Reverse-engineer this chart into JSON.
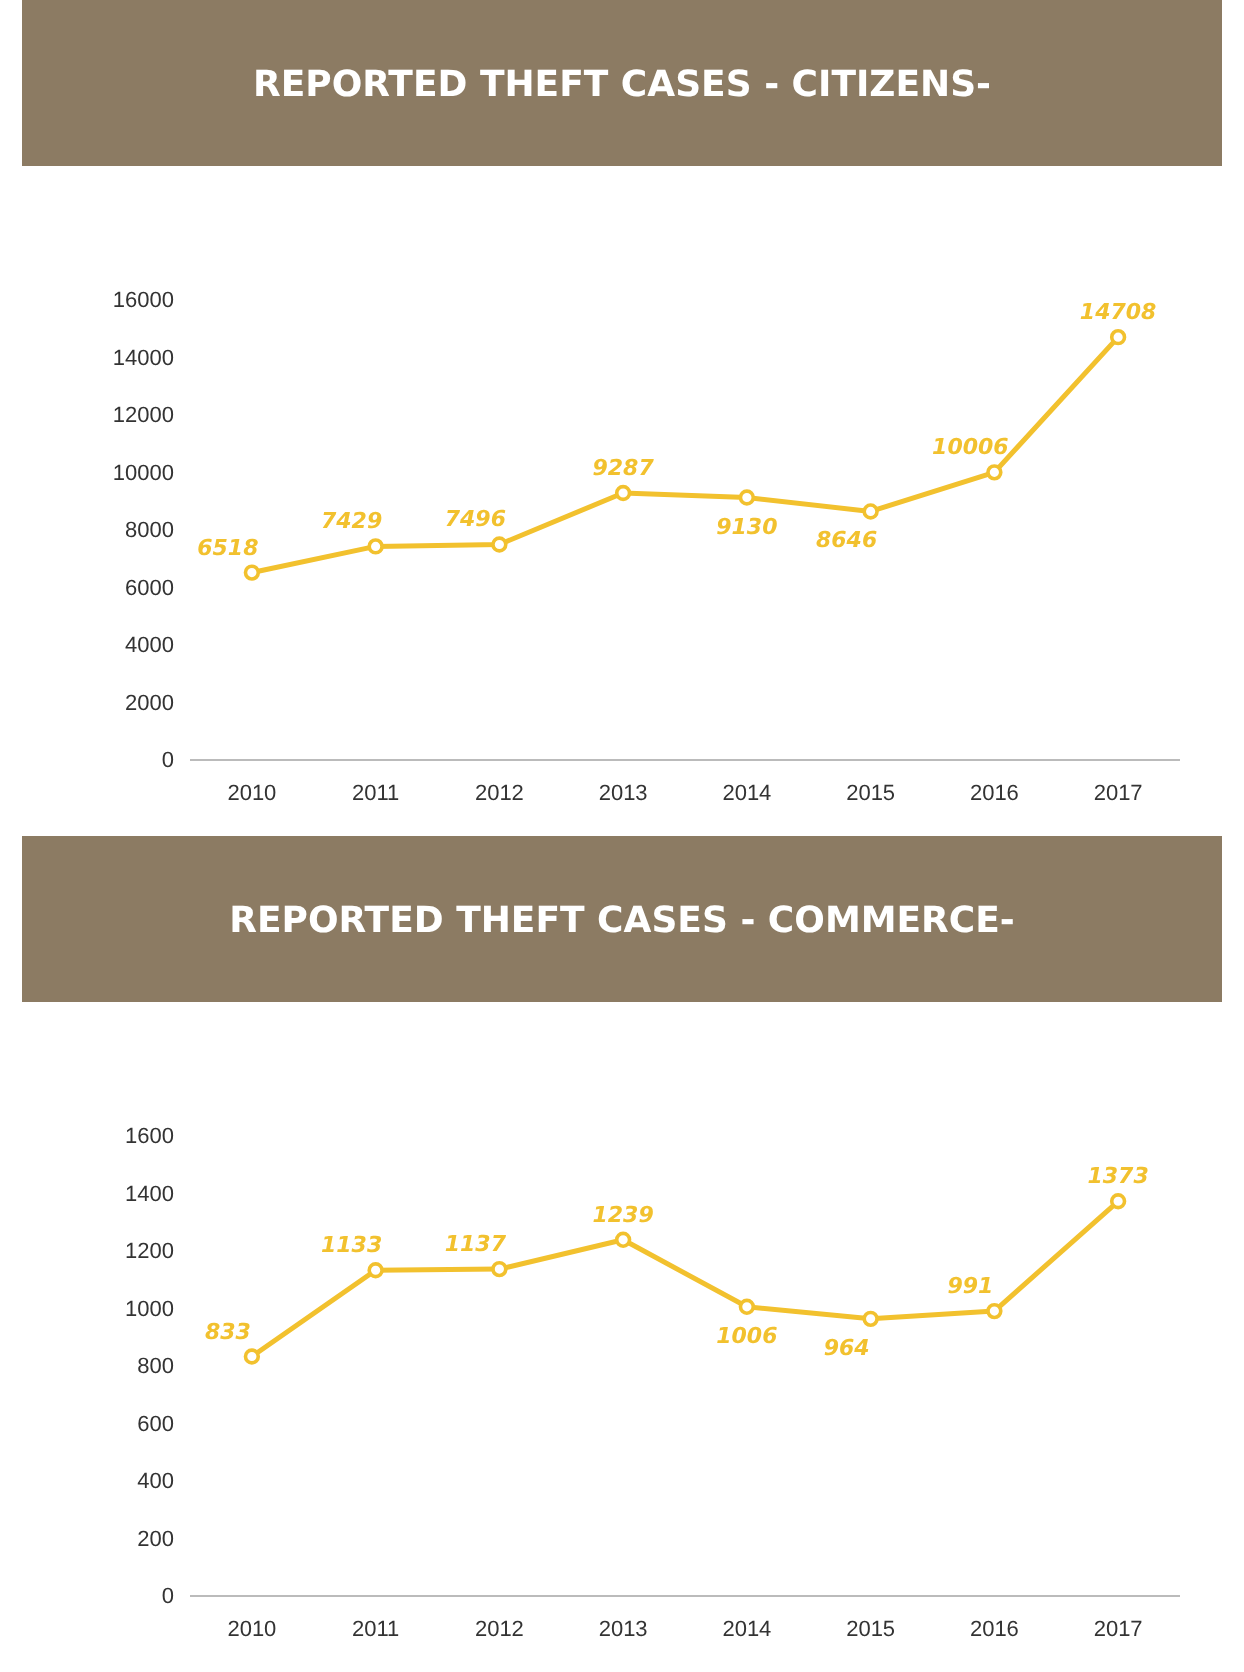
{
  "chart_data": [
    {
      "type": "line",
      "title": "REPORTED THEFT CASES - CITIZENS-",
      "categories": [
        "2010",
        "2011",
        "2012",
        "2013",
        "2014",
        "2015",
        "2016",
        "2017"
      ],
      "values": [
        6518,
        7429,
        7496,
        9287,
        9130,
        8646,
        10006,
        14708
      ],
      "color": "#f2c12e",
      "ylim": [
        0,
        16000
      ],
      "yticks": [
        0,
        2000,
        4000,
        6000,
        8000,
        10000,
        12000,
        14000,
        16000
      ],
      "marker": "circle",
      "data_labels": true
    },
    {
      "type": "line",
      "title": "REPORTED THEFT CASES - COMMERCE-",
      "categories": [
        "2010",
        "2011",
        "2012",
        "2013",
        "2014",
        "2015",
        "2016",
        "2017"
      ],
      "values": [
        833,
        1133,
        1137,
        1239,
        1006,
        964,
        991,
        1373
      ],
      "color": "#f2c12e",
      "ylim": [
        0,
        1600
      ],
      "yticks": [
        0,
        200,
        400,
        600,
        800,
        1000,
        1200,
        1400,
        1600
      ],
      "marker": "circle",
      "data_labels": true
    }
  ]
}
